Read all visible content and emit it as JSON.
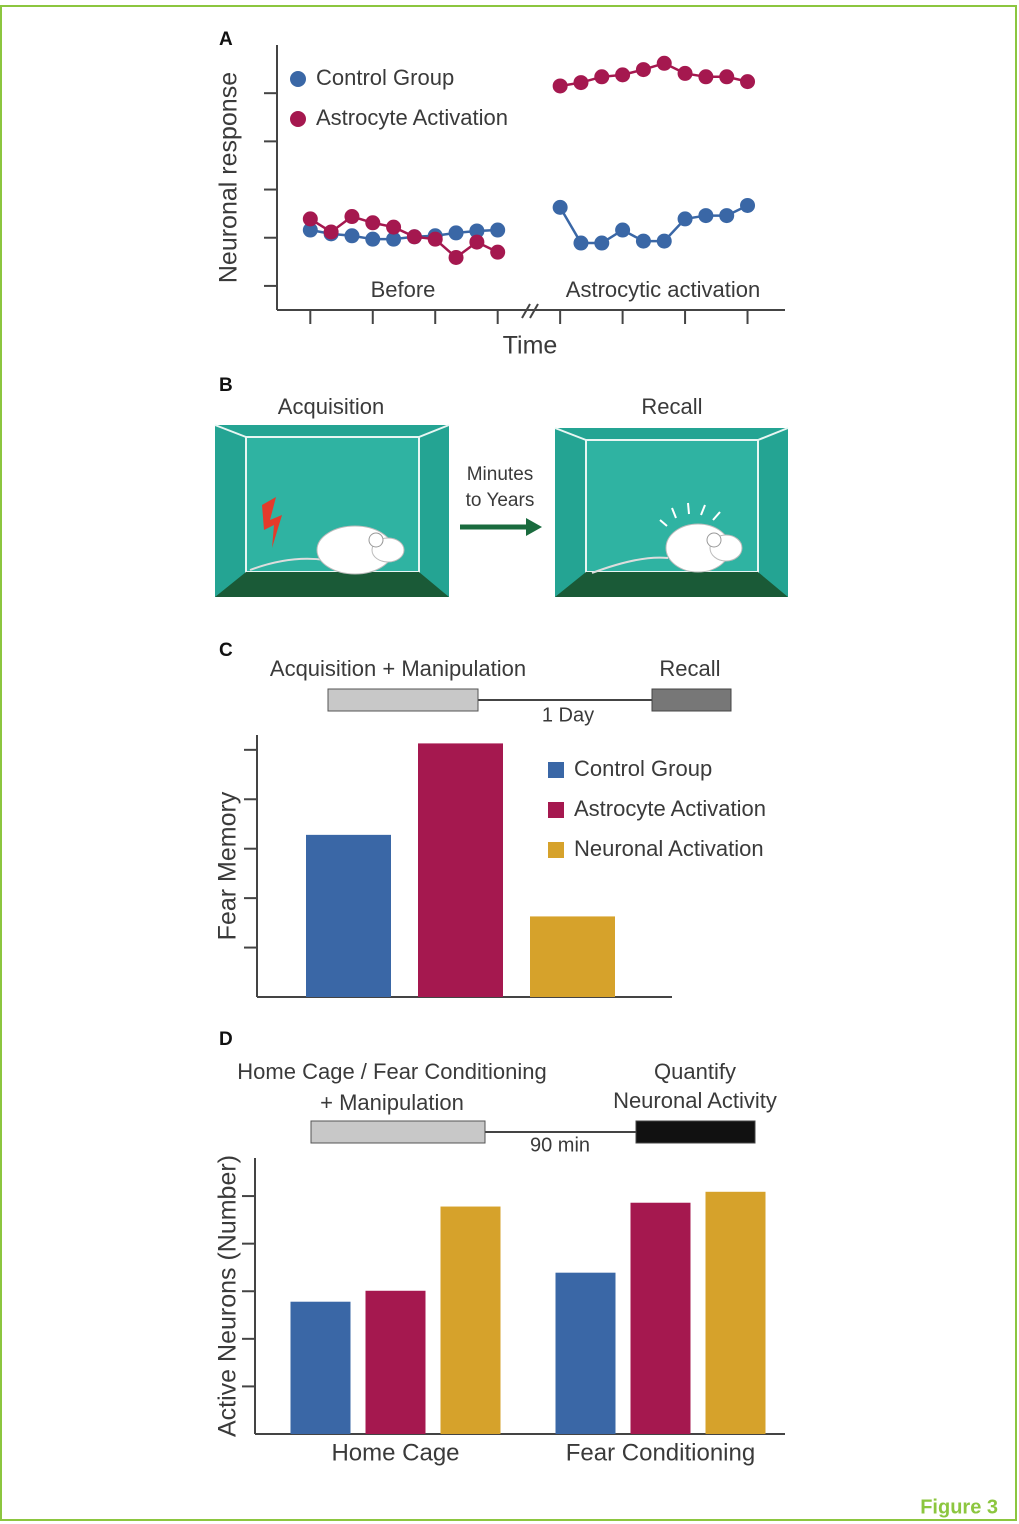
{
  "chart_data": [
    {
      "type": "line",
      "panel": "A",
      "y_label": "Neuronal response",
      "x_label": "Time",
      "annotations": [
        "Before",
        "Astrocytic activation"
      ],
      "x": [
        1,
        2,
        3,
        4,
        5,
        6,
        7,
        8,
        9,
        10,
        11.5,
        13,
        14,
        15,
        16,
        17,
        18,
        19,
        20,
        21,
        22
      ],
      "xlim": [
        -0.6,
        23.8
      ],
      "xticks": [
        1,
        4,
        7,
        10,
        13,
        16,
        19,
        22
      ],
      "ylim": [
        0.5,
        6
      ],
      "yticks": [
        1,
        2,
        3,
        4,
        5
      ],
      "legend": "upper left",
      "series": [
        {
          "name": "Control Group",
          "color": "#3a67a6",
          "values": [
            2.16,
            2.08,
            2.04,
            1.97,
            1.97,
            2.02,
            2.04,
            2.1,
            2.14,
            2.16,
            null,
            2.63,
            1.89,
            1.89,
            2.16,
            1.93,
            1.93,
            2.39,
            2.46,
            2.46,
            2.67
          ]
        },
        {
          "name": "Astrocyte Activation",
          "color": "#a5184f",
          "values": [
            2.39,
            2.12,
            2.44,
            2.31,
            2.22,
            2.02,
            1.97,
            1.59,
            1.91,
            1.7,
            null,
            5.15,
            5.22,
            5.34,
            5.38,
            5.49,
            5.62,
            5.41,
            5.34,
            5.34,
            5.24
          ]
        }
      ]
    },
    {
      "type": "bar",
      "panel": "C",
      "timeline": {
        "left": [
          "Acquisition + Manipulation"
        ],
        "right": [
          "Recall"
        ],
        "interval": "1 Day"
      },
      "y_label": "Fear Memory",
      "categories": [
        null
      ],
      "ylim": [
        0,
        5.3
      ],
      "yticks": [
        1,
        2,
        3,
        4,
        5
      ],
      "legend": "upper right",
      "series": [
        {
          "name": "Control Group",
          "color": "#3a67a6",
          "values": [
            3.28
          ]
        },
        {
          "name": "Astrocyte Activation",
          "color": "#a5184f",
          "values": [
            5.13
          ]
        },
        {
          "name": "Neuronal Activation",
          "color": "#d6a22b",
          "values": [
            1.63
          ]
        }
      ]
    },
    {
      "type": "bar",
      "panel": "D",
      "timeline": {
        "left": [
          "Home Cage / Fear Conditioning",
          "+ Manipulation"
        ],
        "right": [
          "Quantify",
          "Neuronal Activity"
        ],
        "interval": "90 min"
      },
      "y_label": "Active Neurons (Number)",
      "categories": [
        "Home Cage",
        "Fear Conditioning"
      ],
      "ylim": [
        0,
        5.8
      ],
      "yticks": [
        1,
        2,
        3,
        4,
        5
      ],
      "series": [
        {
          "color": "#3a67a6",
          "values": [
            2.78,
            3.39
          ]
        },
        {
          "color": "#a5184f",
          "values": [
            3.01,
            4.86
          ]
        },
        {
          "color": "#d6a22b",
          "values": [
            4.78,
            5.09
          ]
        }
      ]
    }
  ],
  "diagram": {
    "panel": "B",
    "left_label": "Acquisition",
    "right_label": "Recall",
    "arrow_label": [
      "Minutes",
      "to Years"
    ]
  },
  "caption": "Figure 3"
}
